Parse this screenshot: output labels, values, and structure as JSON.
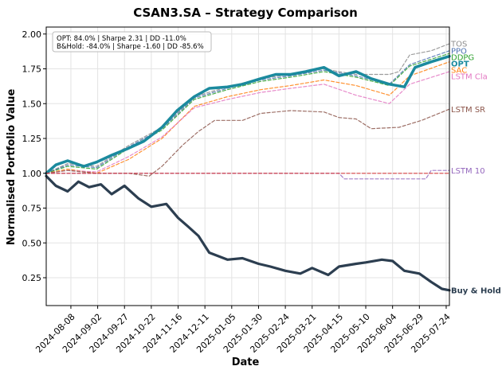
{
  "chart_data": {
    "type": "line",
    "title": "CSAN3.SA – Strategy Comparison",
    "xlabel": "Date",
    "ylabel": "Normalised Portfolio Value",
    "ylim": [
      0.05,
      2.05
    ],
    "grid": true,
    "y_ticks": [
      "0.25",
      "0.50",
      "0.75",
      "1.00",
      "1.25",
      "1.50",
      "1.75",
      "2.00"
    ],
    "x_ticks": [
      "2024-08-08",
      "2024-09-02",
      "2024-09-27",
      "2024-10-22",
      "2024-11-16",
      "2024-12-11",
      "2025-01-05",
      "2025-01-30",
      "2025-02-24",
      "2025-03-21",
      "2025-04-15",
      "2025-05-10",
      "2025-06-04",
      "2025-06-29",
      "2025-07-24"
    ],
    "x_start": "2024-07-16",
    "x_end": "2025-07-27",
    "annotation": {
      "line1": "OPT: 84.0% | Sharpe 2.31 | DD -11.0%",
      "line2": "B&Hold: -84.0% | Sharpe -1.60 | DD -85.6%"
    },
    "series": [
      {
        "name": "TOS",
        "label": "TOS",
        "color": "#8c8c8c",
        "style": "dashed",
        "width": 1.2,
        "end_value": 1.93,
        "points": [
          [
            "2024-07-16",
            1.0
          ],
          [
            "2024-08-05",
            1.07
          ],
          [
            "2024-09-01",
            1.05
          ],
          [
            "2024-10-01",
            1.2
          ],
          [
            "2024-11-01",
            1.33
          ],
          [
            "2024-12-01",
            1.55
          ],
          [
            "2025-01-01",
            1.62
          ],
          [
            "2025-02-01",
            1.68
          ],
          [
            "2025-03-01",
            1.71
          ],
          [
            "2025-04-01",
            1.75
          ],
          [
            "2025-04-15",
            1.73
          ],
          [
            "2025-05-01",
            1.71
          ],
          [
            "2025-06-01",
            1.71
          ],
          [
            "2025-06-10",
            1.73
          ],
          [
            "2025-06-20",
            1.85
          ],
          [
            "2025-07-10",
            1.88
          ],
          [
            "2025-07-27",
            1.93
          ]
        ]
      },
      {
        "name": "PPO",
        "label": "PPO",
        "color": "#4c72b0",
        "style": "dashed",
        "width": 1.2,
        "end_value": 1.88,
        "points": [
          [
            "2024-07-16",
            1.0
          ],
          [
            "2024-08-05",
            1.06
          ],
          [
            "2024-09-01",
            1.04
          ],
          [
            "2024-10-01",
            1.19
          ],
          [
            "2024-11-01",
            1.32
          ],
          [
            "2024-12-01",
            1.54
          ],
          [
            "2025-01-01",
            1.61
          ],
          [
            "2025-02-01",
            1.67
          ],
          [
            "2025-03-01",
            1.7
          ],
          [
            "2025-04-01",
            1.74
          ],
          [
            "2025-05-01",
            1.7
          ],
          [
            "2025-06-01",
            1.64
          ],
          [
            "2025-06-20",
            1.78
          ],
          [
            "2025-07-27",
            1.88
          ]
        ]
      },
      {
        "name": "DDPG",
        "label": "DDPG",
        "color": "#2ca02c",
        "style": "dashed",
        "width": 1.2,
        "end_value": 1.86,
        "points": [
          [
            "2024-07-16",
            1.0
          ],
          [
            "2024-08-05",
            1.05
          ],
          [
            "2024-09-01",
            1.03
          ],
          [
            "2024-10-01",
            1.18
          ],
          [
            "2024-11-01",
            1.31
          ],
          [
            "2024-12-01",
            1.53
          ],
          [
            "2025-01-01",
            1.6
          ],
          [
            "2025-02-01",
            1.66
          ],
          [
            "2025-03-01",
            1.69
          ],
          [
            "2025-04-01",
            1.73
          ],
          [
            "2025-05-01",
            1.69
          ],
          [
            "2025-06-01",
            1.63
          ],
          [
            "2025-06-20",
            1.77
          ],
          [
            "2025-07-27",
            1.86
          ]
        ]
      },
      {
        "name": "SAC",
        "label": "SAC",
        "color": "#ff7f0e",
        "style": "dashed",
        "width": 1.2,
        "end_value": 1.8,
        "points": [
          [
            "2024-07-16",
            1.0
          ],
          [
            "2024-08-05",
            1.03
          ],
          [
            "2024-09-01",
            1.0
          ],
          [
            "2024-10-01",
            1.1
          ],
          [
            "2024-11-01",
            1.25
          ],
          [
            "2024-12-01",
            1.48
          ],
          [
            "2025-01-01",
            1.55
          ],
          [
            "2025-02-01",
            1.6
          ],
          [
            "2025-03-01",
            1.63
          ],
          [
            "2025-04-01",
            1.67
          ],
          [
            "2025-05-01",
            1.63
          ],
          [
            "2025-06-01",
            1.56
          ],
          [
            "2025-06-20",
            1.7
          ],
          [
            "2025-07-27",
            1.8
          ]
        ]
      },
      {
        "name": "LSTM Cla",
        "label": "LSTM Cla",
        "color": "#e377c2",
        "style": "dashed",
        "width": 1.2,
        "end_value": 1.73,
        "points": [
          [
            "2024-07-16",
            1.0
          ],
          [
            "2024-08-05",
            1.02
          ],
          [
            "2024-09-01",
            1.01
          ],
          [
            "2024-10-01",
            1.12
          ],
          [
            "2024-11-01",
            1.26
          ],
          [
            "2024-12-01",
            1.47
          ],
          [
            "2025-01-01",
            1.53
          ],
          [
            "2025-02-01",
            1.58
          ],
          [
            "2025-03-01",
            1.61
          ],
          [
            "2025-04-01",
            1.64
          ],
          [
            "2025-05-01",
            1.56
          ],
          [
            "2025-06-01",
            1.5
          ],
          [
            "2025-06-20",
            1.64
          ],
          [
            "2025-07-27",
            1.73
          ]
        ]
      },
      {
        "name": "OPT",
        "label": "OPT",
        "color": "#1b8a9e",
        "style": "solid",
        "width": 3.5,
        "end_value": 1.84,
        "points": [
          [
            "2024-07-16",
            1.0
          ],
          [
            "2024-07-25",
            1.06
          ],
          [
            "2024-08-05",
            1.09
          ],
          [
            "2024-08-20",
            1.05
          ],
          [
            "2024-09-01",
            1.08
          ],
          [
            "2024-09-15",
            1.13
          ],
          [
            "2024-10-01",
            1.18
          ],
          [
            "2024-10-15",
            1.23
          ],
          [
            "2024-11-01",
            1.33
          ],
          [
            "2024-11-15",
            1.45
          ],
          [
            "2024-12-01",
            1.55
          ],
          [
            "2024-12-15",
            1.61
          ],
          [
            "2025-01-01",
            1.62
          ],
          [
            "2025-01-15",
            1.64
          ],
          [
            "2025-02-01",
            1.68
          ],
          [
            "2025-02-15",
            1.71
          ],
          [
            "2025-03-01",
            1.71
          ],
          [
            "2025-03-15",
            1.73
          ],
          [
            "2025-04-01",
            1.76
          ],
          [
            "2025-04-15",
            1.7
          ],
          [
            "2025-05-01",
            1.73
          ],
          [
            "2025-05-15",
            1.68
          ],
          [
            "2025-06-01",
            1.64
          ],
          [
            "2025-06-15",
            1.62
          ],
          [
            "2025-06-25",
            1.76
          ],
          [
            "2025-07-10",
            1.8
          ],
          [
            "2025-07-27",
            1.84
          ]
        ]
      },
      {
        "name": "LSTM SR",
        "label": "LSTM SR",
        "color": "#8c564b",
        "style": "dashed",
        "width": 1.2,
        "end_value": 1.46,
        "points": [
          [
            "2024-07-16",
            1.0
          ],
          [
            "2024-08-05",
            1.02
          ],
          [
            "2024-09-01",
            1.0
          ],
          [
            "2024-10-01",
            1.0
          ],
          [
            "2024-10-20",
            0.98
          ],
          [
            "2024-11-01",
            1.05
          ],
          [
            "2024-11-20",
            1.2
          ],
          [
            "2024-12-05",
            1.3
          ],
          [
            "2024-12-20",
            1.38
          ],
          [
            "2025-01-15",
            1.38
          ],
          [
            "2025-02-01",
            1.43
          ],
          [
            "2025-03-01",
            1.45
          ],
          [
            "2025-04-01",
            1.44
          ],
          [
            "2025-04-15",
            1.4
          ],
          [
            "2025-05-01",
            1.39
          ],
          [
            "2025-05-15",
            1.32
          ],
          [
            "2025-06-10",
            1.33
          ],
          [
            "2025-07-01",
            1.38
          ],
          [
            "2025-07-27",
            1.46
          ]
        ]
      },
      {
        "name": "LSTM 10",
        "label": "LSTM 10",
        "color": "#9467bd",
        "style": "dashed",
        "width": 1.2,
        "end_value": 1.02,
        "points": [
          [
            "2024-07-16",
            1.0
          ],
          [
            "2025-04-15",
            1.0
          ],
          [
            "2025-04-20",
            0.96
          ],
          [
            "2025-07-05",
            0.96
          ],
          [
            "2025-07-10",
            1.02
          ],
          [
            "2025-07-27",
            1.02
          ]
        ]
      },
      {
        "name": "Baseline",
        "label": "",
        "color": "#d62728",
        "style": "dashed",
        "width": 1.2,
        "end_value": 1.0,
        "points": [
          [
            "2024-07-16",
            1.0
          ],
          [
            "2025-07-27",
            1.0
          ]
        ]
      },
      {
        "name": "Buy & Hold",
        "label": "Buy & Hold",
        "color": "#2c3e50",
        "style": "solid",
        "width": 3.2,
        "end_value": 0.16,
        "points": [
          [
            "2024-07-16",
            0.98
          ],
          [
            "2024-07-25",
            0.91
          ],
          [
            "2024-08-05",
            0.87
          ],
          [
            "2024-08-15",
            0.94
          ],
          [
            "2024-08-25",
            0.9
          ],
          [
            "2024-09-05",
            0.92
          ],
          [
            "2024-09-15",
            0.85
          ],
          [
            "2024-09-27",
            0.91
          ],
          [
            "2024-10-10",
            0.82
          ],
          [
            "2024-10-22",
            0.76
          ],
          [
            "2024-11-05",
            0.78
          ],
          [
            "2024-11-16",
            0.68
          ],
          [
            "2024-11-25",
            0.62
          ],
          [
            "2024-12-05",
            0.55
          ],
          [
            "2024-12-15",
            0.43
          ],
          [
            "2025-01-01",
            0.38
          ],
          [
            "2025-01-15",
            0.39
          ],
          [
            "2025-01-30",
            0.35
          ],
          [
            "2025-02-10",
            0.33
          ],
          [
            "2025-02-24",
            0.3
          ],
          [
            "2025-03-10",
            0.28
          ],
          [
            "2025-03-21",
            0.32
          ],
          [
            "2025-04-05",
            0.27
          ],
          [
            "2025-04-15",
            0.33
          ],
          [
            "2025-05-01",
            0.35
          ],
          [
            "2025-05-10",
            0.36
          ],
          [
            "2025-05-25",
            0.38
          ],
          [
            "2025-06-04",
            0.37
          ],
          [
            "2025-06-15",
            0.3
          ],
          [
            "2025-06-29",
            0.28
          ],
          [
            "2025-07-10",
            0.22
          ],
          [
            "2025-07-20",
            0.17
          ],
          [
            "2025-07-27",
            0.16
          ]
        ]
      }
    ]
  }
}
